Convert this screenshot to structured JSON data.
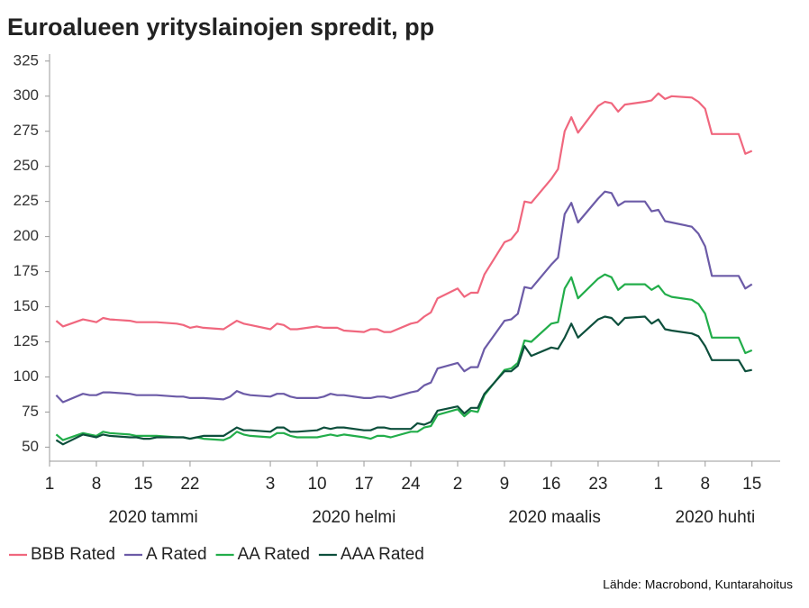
{
  "chart_data": {
    "type": "line",
    "title": "Euroalueen yrityslainojen spredit, pp",
    "source": "Lähde: Macrobond, Kuntarahoitus",
    "x": [
      "2020-01-02",
      "2020-01-03",
      "2020-01-06",
      "2020-01-07",
      "2020-01-08",
      "2020-01-09",
      "2020-01-10",
      "2020-01-13",
      "2020-01-14",
      "2020-01-15",
      "2020-01-16",
      "2020-01-17",
      "2020-01-20",
      "2020-01-21",
      "2020-01-22",
      "2020-01-23",
      "2020-01-24",
      "2020-01-27",
      "2020-01-28",
      "2020-01-29",
      "2020-01-30",
      "2020-01-31",
      "2020-02-03",
      "2020-02-04",
      "2020-02-05",
      "2020-02-06",
      "2020-02-07",
      "2020-02-10",
      "2020-02-11",
      "2020-02-12",
      "2020-02-13",
      "2020-02-14",
      "2020-02-17",
      "2020-02-18",
      "2020-02-19",
      "2020-02-20",
      "2020-02-21",
      "2020-02-24",
      "2020-02-25",
      "2020-02-26",
      "2020-02-27",
      "2020-02-28",
      "2020-03-02",
      "2020-03-03",
      "2020-03-04",
      "2020-03-05",
      "2020-03-06",
      "2020-03-09",
      "2020-03-10",
      "2020-03-11",
      "2020-03-12",
      "2020-03-13",
      "2020-03-16",
      "2020-03-17",
      "2020-03-18",
      "2020-03-19",
      "2020-03-20",
      "2020-03-23",
      "2020-03-24",
      "2020-03-25",
      "2020-03-26",
      "2020-03-27",
      "2020-03-30",
      "2020-03-31",
      "2020-04-01",
      "2020-04-02",
      "2020-04-03",
      "2020-04-06",
      "2020-04-07",
      "2020-04-08",
      "2020-04-09",
      "2020-04-10",
      "2020-04-13",
      "2020-04-14",
      "2020-04-15"
    ],
    "series": [
      {
        "name": "BBB Rated",
        "color": "#f0677e",
        "values": [
          140,
          136,
          141,
          140,
          139,
          142,
          141,
          140,
          139,
          139,
          139,
          139,
          138,
          137,
          135,
          136,
          135,
          134,
          137,
          140,
          138,
          137,
          134,
          138,
          137,
          134,
          134,
          136,
          135,
          135,
          135,
          133,
          132,
          134,
          134,
          132,
          132,
          138,
          139,
          143,
          146,
          156,
          163,
          157,
          160,
          160,
          173,
          196,
          198,
          204,
          225,
          224,
          241,
          248,
          275,
          285,
          274,
          293,
          296,
          295,
          289,
          294,
          296,
          297,
          302,
          298,
          300,
          299,
          296,
          291,
          273,
          273,
          273,
          259,
          261
        ]
      },
      {
        "name": "A Rated",
        "color": "#6c5ba7",
        "values": [
          87,
          82,
          88,
          87,
          87,
          89,
          89,
          88,
          87,
          87,
          87,
          87,
          86,
          86,
          85,
          85,
          85,
          84,
          86,
          90,
          88,
          87,
          86,
          88,
          88,
          86,
          85,
          85,
          86,
          88,
          87,
          87,
          85,
          85,
          86,
          86,
          85,
          89,
          90,
          94,
          96,
          106,
          110,
          104,
          107,
          107,
          120,
          140,
          141,
          145,
          164,
          163,
          180,
          185,
          216,
          224,
          210,
          227,
          232,
          231,
          222,
          225,
          225,
          218,
          219,
          211,
          210,
          207,
          202,
          193,
          172,
          172,
          172,
          163,
          166
        ]
      },
      {
        "name": "AA Rated",
        "color": "#22ad4a",
        "values": [
          59,
          55,
          60,
          59,
          58,
          61,
          60,
          59,
          58,
          58,
          58,
          58,
          57,
          57,
          56,
          57,
          56,
          55,
          57,
          61,
          59,
          58,
          57,
          60,
          60,
          58,
          57,
          57,
          58,
          59,
          58,
          59,
          57,
          56,
          58,
          58,
          57,
          61,
          61,
          64,
          65,
          73,
          77,
          72,
          76,
          75,
          87,
          105,
          106,
          110,
          126,
          125,
          138,
          139,
          163,
          171,
          156,
          170,
          173,
          171,
          162,
          166,
          166,
          162,
          165,
          159,
          157,
          155,
          152,
          145,
          128,
          128,
          128,
          117,
          119
        ]
      },
      {
        "name": "AAA Rated",
        "color": "#0d4f3c",
        "values": [
          55,
          52,
          59,
          58,
          57,
          59,
          58,
          57,
          57,
          56,
          56,
          57,
          57,
          57,
          56,
          57,
          58,
          58,
          61,
          64,
          62,
          62,
          61,
          64,
          64,
          61,
          61,
          62,
          64,
          63,
          64,
          64,
          62,
          62,
          64,
          64,
          63,
          63,
          67,
          66,
          68,
          76,
          79,
          74,
          78,
          78,
          88,
          104,
          104,
          108,
          122,
          115,
          121,
          120,
          128,
          138,
          128,
          141,
          143,
          142,
          137,
          142,
          143,
          138,
          141,
          134,
          133,
          131,
          129,
          122,
          112,
          112,
          112,
          104,
          105
        ]
      }
    ],
    "xlim": [
      "2020-01-01",
      "2020-04-18"
    ],
    "xticks": [
      {
        "value": "2020-01-01",
        "label": "1"
      },
      {
        "value": "2020-01-08",
        "label": "8"
      },
      {
        "value": "2020-01-15",
        "label": "15"
      },
      {
        "value": "2020-01-22",
        "label": "22"
      },
      {
        "value": "2020-02-03",
        "label": "3"
      },
      {
        "value": "2020-02-10",
        "label": "10"
      },
      {
        "value": "2020-02-17",
        "label": "17"
      },
      {
        "value": "2020-02-24",
        "label": "24"
      },
      {
        "value": "2020-03-02",
        "label": "2"
      },
      {
        "value": "2020-03-09",
        "label": "9"
      },
      {
        "value": "2020-03-16",
        "label": "16"
      },
      {
        "value": "2020-03-23",
        "label": "23"
      },
      {
        "value": "2020-04-01",
        "label": "1"
      },
      {
        "value": "2020-04-08",
        "label": "8"
      },
      {
        "value": "2020-04-15",
        "label": "15"
      }
    ],
    "xgroups": [
      {
        "value": "2020-01",
        "label": "2020 tammi"
      },
      {
        "value": "2020-02",
        "label": "2020 helmi"
      },
      {
        "value": "2020-03",
        "label": "2020 maalis"
      },
      {
        "value": "2020-04",
        "label": "2020 huhti"
      }
    ],
    "ylim": [
      40,
      330
    ],
    "yticks": [
      50,
      75,
      100,
      125,
      150,
      175,
      200,
      225,
      250,
      275,
      300,
      325
    ],
    "grid": false,
    "legend": "bottom"
  }
}
